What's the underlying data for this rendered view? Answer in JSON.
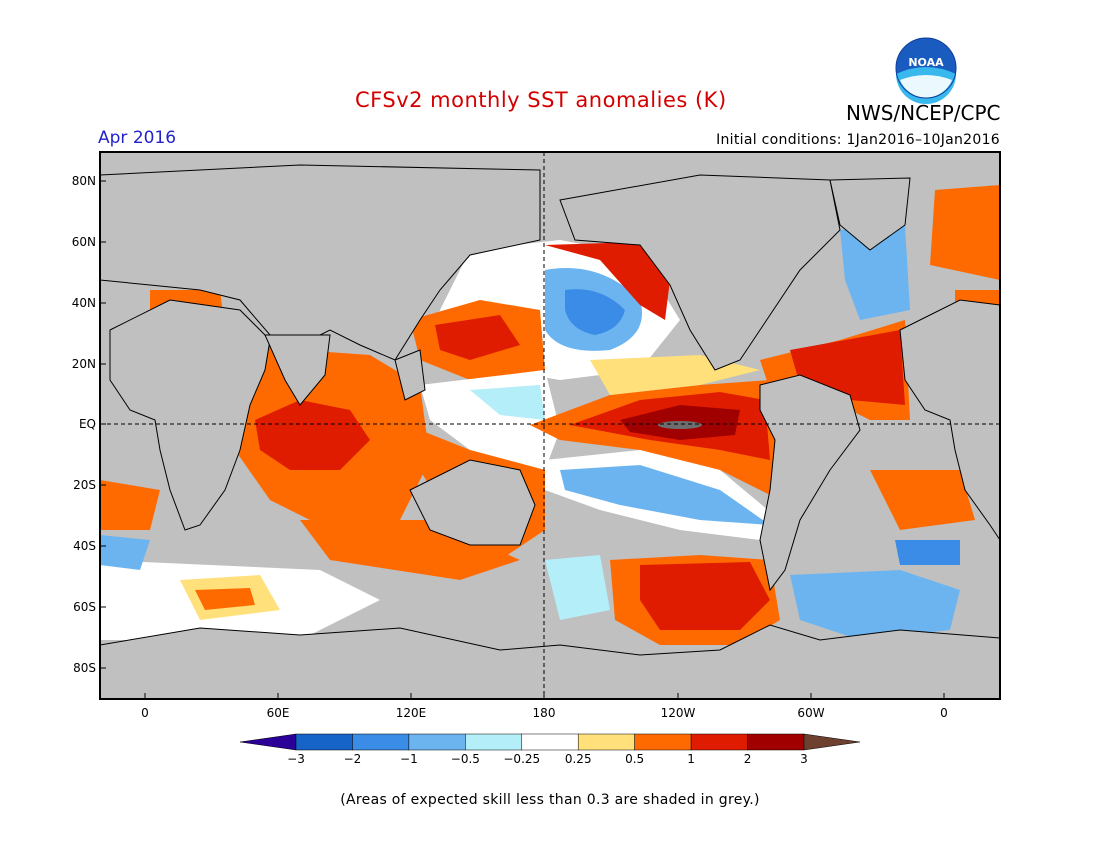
{
  "title": "CFSv2 monthly SST anomalies (K)",
  "agency": "NWS/NCEP/CPC",
  "logo_text": "NOAA",
  "valid_month": "Apr 2016",
  "initial_conditions": "Initial conditions: 1Jan2016–10Jan2016",
  "footnote": "(Areas of expected skill less than 0.3 are shaded in grey.)",
  "map": {
    "y_ticks": [
      "80N",
      "60N",
      "40N",
      "20N",
      "EQ",
      "20S",
      "40S",
      "60S",
      "80S"
    ],
    "x_ticks": [
      "0",
      "60E",
      "120E",
      "180",
      "120W",
      "60W",
      "0"
    ],
    "land_color": "#c0c0c0",
    "low_skill_color": "#c0c0c0"
  },
  "colorbar": {
    "labels": [
      "−3",
      "−2",
      "−1",
      "−0.5",
      "−0.25",
      "0.25",
      "0.5",
      "1",
      "2",
      "3"
    ],
    "colors": [
      "#2a0099",
      "#1764c8",
      "#3a8ce6",
      "#6cb4f0",
      "#b4eef8",
      "#ffffff",
      "#ffe07a",
      "#ff6a00",
      "#e01c00",
      "#a00000",
      "#6e4030"
    ]
  }
}
